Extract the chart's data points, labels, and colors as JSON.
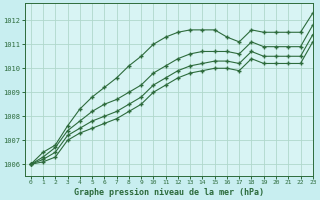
{
  "title": "Graphe pression niveau de la mer (hPa)",
  "background_color": "#c8eef0",
  "plot_bg_color": "#d8f4f4",
  "grid_color": "#b0d8cc",
  "line_color": "#2d6b3c",
  "xlim": [
    -0.5,
    23
  ],
  "ylim": [
    1005.5,
    1012.7
  ],
  "yticks": [
    1006,
    1007,
    1008,
    1009,
    1010,
    1011,
    1012
  ],
  "xticks": [
    0,
    1,
    2,
    3,
    4,
    5,
    6,
    7,
    8,
    9,
    10,
    11,
    12,
    13,
    14,
    15,
    16,
    17,
    18,
    19,
    20,
    21,
    22,
    23
  ],
  "series": [
    [
      1006.0,
      1006.5,
      1006.8,
      1007.6,
      1008.3,
      1008.8,
      1009.2,
      1009.6,
      1010.1,
      1010.5,
      1011.0,
      1011.3,
      1011.5,
      1011.6,
      1011.6,
      1011.6,
      1011.3,
      1011.1,
      1011.6,
      1011.5,
      1011.5,
      1011.5,
      1011.5,
      1012.3
    ],
    [
      1006.0,
      1006.3,
      1006.7,
      1007.4,
      1007.8,
      1008.2,
      1008.5,
      1008.7,
      1009.0,
      1009.3,
      1009.8,
      1010.1,
      1010.4,
      1010.6,
      1010.7,
      1010.7,
      1010.7,
      1010.6,
      1011.1,
      1010.9,
      1010.9,
      1010.9,
      1010.9,
      1011.8
    ],
    [
      1006.0,
      1006.2,
      1006.5,
      1007.2,
      1007.5,
      1007.8,
      1008.0,
      1008.2,
      1008.5,
      1008.8,
      1009.3,
      1009.6,
      1009.9,
      1010.1,
      1010.2,
      1010.3,
      1010.3,
      1010.2,
      1010.7,
      1010.5,
      1010.5,
      1010.5,
      1010.5,
      1011.4
    ],
    [
      1006.0,
      1006.1,
      1006.3,
      1007.0,
      1007.3,
      1007.5,
      1007.7,
      1007.9,
      1008.2,
      1008.5,
      1009.0,
      1009.3,
      1009.6,
      1009.8,
      1009.9,
      1010.0,
      1010.0,
      1009.9,
      1010.4,
      1010.2,
      1010.2,
      1010.2,
      1010.2,
      1011.1
    ]
  ]
}
